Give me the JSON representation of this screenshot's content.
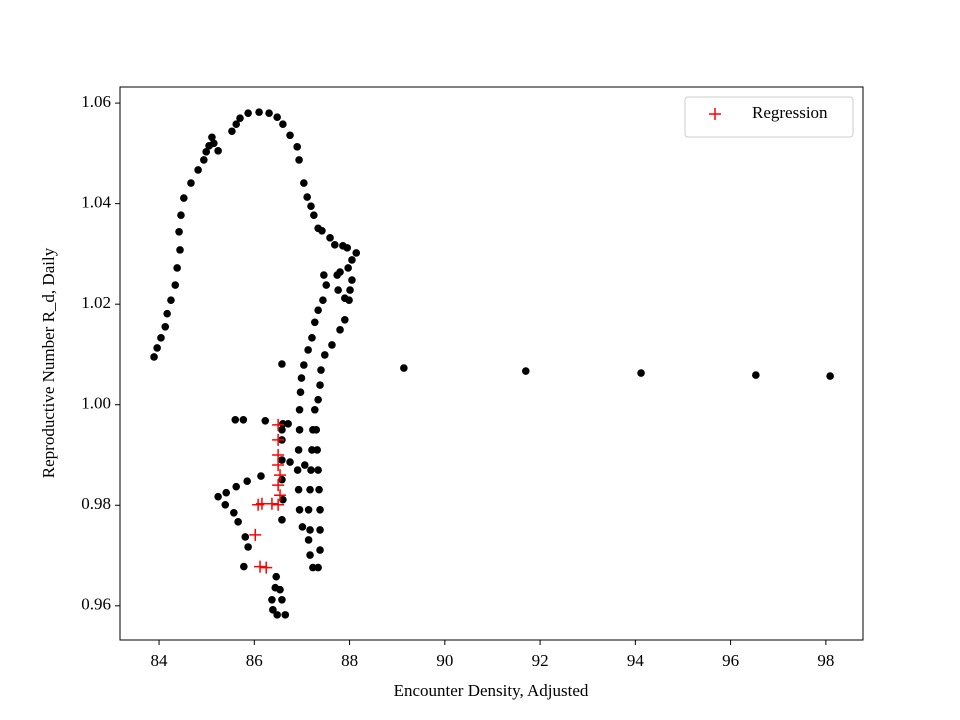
{
  "chart_data": {
    "type": "scatter",
    "xlabel": "Encounter Density, Adjusted",
    "ylabel": "Reproductive Number R_d, Daily",
    "xlim": [
      83.18,
      98.78
    ],
    "ylim": [
      0.9532,
      1.0632
    ],
    "xticks": [
      84,
      86,
      88,
      90,
      92,
      94,
      96,
      98
    ],
    "yticks": [
      0.96,
      0.98,
      {
        "value": 1,
        "label": "1.00"
      },
      1.02,
      1.04,
      1.06
    ],
    "legend": "upper right",
    "series": [
      {
        "color": "#000000",
        "marker": "dot",
        "x": [
          83.895,
          83.96,
          84.04,
          84.13,
          84.17,
          84.25,
          84.34,
          84.38,
          84.44,
          84.42,
          84.46,
          84.52,
          84.67,
          84.82,
          84.94,
          84.99,
          85.05,
          85.11,
          85.15,
          85.24,
          85.53,
          85.62,
          85.7,
          85.87,
          86.1,
          86.31,
          86.48,
          86.6,
          86.75,
          86.9,
          86.94,
          87.04,
          87.11,
          87.19,
          87.25,
          87.34,
          87.42,
          87.59,
          87.69,
          87.86,
          87.95,
          88.14,
          88.05,
          87.97,
          87.8,
          88.05,
          88.01,
          87.9,
          87.76,
          87.74,
          87.46,
          87.51,
          87.44,
          87.34,
          87.27,
          87.21,
          87.13,
          87.04,
          86.99,
          86.97,
          86.95,
          86.95,
          86.93,
          86.91,
          86.93,
          86.95,
          87.01,
          87.17,
          87.14,
          87.17,
          87.19,
          87.21,
          87.23,
          87.27,
          87.34,
          87.38,
          87.4,
          87.48,
          87.63,
          87.8,
          87.9,
          87.99,
          87.3,
          87.32,
          87.34,
          87.36,
          87.38,
          87.38,
          87.38,
          87.34,
          87.23,
          87.17,
          87.14,
          87.06,
          86.75,
          86.58,
          86.6,
          86.71,
          86.58,
          86.58,
          86.14,
          85.85,
          85.62,
          85.41,
          85.24,
          85.39,
          85.57,
          85.66,
          85.81,
          85.87,
          85.78,
          85.6,
          85.77,
          86.23,
          86.46,
          86.44,
          86.37,
          86.39,
          86.48,
          86.65,
          86.58,
          86.54,
          86.58,
          86.58,
          86.6,
          86.58,
          89.14,
          91.7,
          94.12,
          96.53,
          98.09
        ],
        "values": [
          1.0095,
          1.0113,
          1.0133,
          1.0155,
          1.0181,
          1.0208,
          1.0238,
          1.0272,
          1.0308,
          1.0344,
          1.0377,
          1.0411,
          1.0441,
          1.0467,
          1.0487,
          1.0503,
          1.0515,
          1.0532,
          1.052,
          1.0505,
          1.0544,
          1.0558,
          1.057,
          1.058,
          1.0582,
          1.058,
          1.0572,
          1.0558,
          1.0536,
          1.0513,
          1.0487,
          1.0441,
          1.0413,
          1.0395,
          1.0377,
          1.0351,
          1.0346,
          1.0332,
          1.0318,
          1.0316,
          1.0312,
          1.0302,
          1.0288,
          1.0272,
          1.0264,
          1.0248,
          1.0228,
          1.0212,
          1.0228,
          1.0258,
          1.0258,
          1.0238,
          1.0208,
          1.0188,
          1.0164,
          1.0133,
          1.0109,
          1.0079,
          1.0053,
          1.0025,
          0.999,
          0.995,
          0.991,
          0.987,
          0.9831,
          0.9791,
          0.9757,
          0.9751,
          0.9791,
          0.9831,
          0.987,
          0.991,
          0.995,
          0.999,
          1.001,
          1.0039,
          1.0069,
          1.0099,
          1.0119,
          1.0149,
          1.0169,
          1.0208,
          0.995,
          0.991,
          0.987,
          0.9831,
          0.9791,
          0.9751,
          0.9711,
          0.9676,
          0.9676,
          0.9701,
          0.9731,
          0.988,
          0.9886,
          1.0081,
          0.9962,
          0.9962,
          0.993,
          0.989,
          0.9858,
          0.9848,
          0.9837,
          0.9825,
          0.9817,
          0.9801,
          0.9785,
          0.9767,
          0.9737,
          0.9717,
          0.9678,
          0.997,
          0.997,
          0.9968,
          0.9658,
          0.9636,
          0.9612,
          0.9592,
          0.9582,
          0.9582,
          0.9612,
          0.9632,
          0.995,
          0.9851,
          0.9811,
          0.9771,
          1.0073,
          1.0067,
          1.0063,
          1.0059,
          1.0057
        ]
      },
      {
        "name": "Regression",
        "color": "#ff0000",
        "marker": "plus",
        "x": [
          86.5,
          86.5,
          86.5,
          86.5,
          86.54,
          86.5,
          86.54,
          86.5,
          86.37,
          86.08,
          86.16,
          86.02,
          86.12,
          86.25
        ],
        "values": [
          0.996,
          0.993,
          0.99,
          0.988,
          0.986,
          0.984,
          0.982,
          0.9801,
          0.9803,
          0.9801,
          0.9803,
          0.9741,
          0.9678,
          0.9676
        ]
      }
    ]
  }
}
